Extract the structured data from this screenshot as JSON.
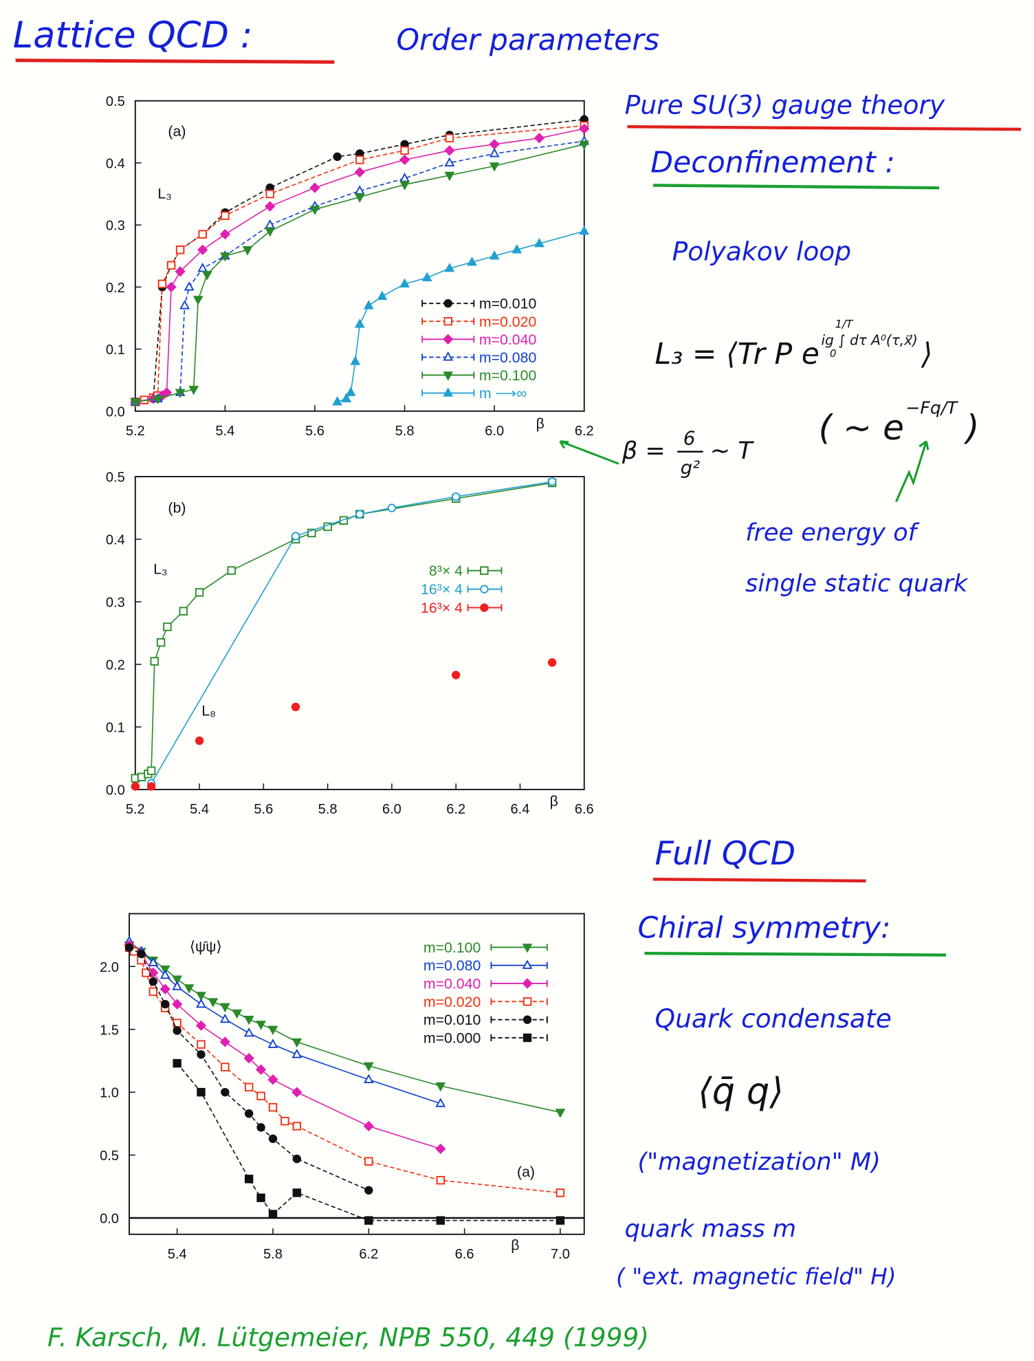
{
  "title": "Lattice QCD :",
  "subtitle": "Order parameters",
  "pure_gauge": {
    "heading": "Pure SU(3) gauge theory",
    "topic": "Deconfinement :",
    "observable": "Polyakov loop",
    "formula": {
      "lhs": "L₃ = ⟨Tr P e",
      "exponent": "ig ∫ dτ A⁰(τ,x⃗)",
      "upper": "1/T",
      "lower": "0",
      "close": "⟩"
    },
    "approx": {
      "open": "( ∼ e",
      "exponent": "−Fq/T",
      "close": ")"
    },
    "beta": {
      "lhs": "β =",
      "numerator": "6",
      "denominator": "g²",
      "rhs": "∼ T"
    },
    "note_line1": "free energy of",
    "note_line2": "single static quark"
  },
  "full_qcd": {
    "heading": "Full QCD",
    "topic": "Chiral symmetry:",
    "observable": "Quark condensate",
    "symbol": "⟨q̄ q⟩",
    "analogy1": "(\"magnetization\" M)",
    "parameter": "quark mass m",
    "analogy2": "( \"ext. magnetic field\" H)"
  },
  "citation": "F. Karsch, M. Lütgemeier, NPB 550, 449 (1999)",
  "chart_data": [
    {
      "type": "line",
      "xlabel": "β",
      "annotations": [
        "(a)",
        "L₃"
      ],
      "xlim": [
        5.2,
        6.2
      ],
      "ylim": [
        0,
        0.5
      ],
      "xticks": [
        5.2,
        5.4,
        5.6,
        5.8,
        {
          "value": 6,
          "label": "6.0"
        },
        6.2
      ],
      "yticks": [
        {
          "value": 0,
          "label": "0.0"
        },
        0.1,
        0.2,
        0.3,
        0.4,
        0.5
      ],
      "series": [
        {
          "name": "m=0.010",
          "color": "#111111",
          "marker": "circle",
          "linestyle": "dashed",
          "x": [
            5.2,
            5.22,
            5.24,
            5.26,
            5.28,
            5.3,
            5.35,
            5.4,
            5.5,
            5.65,
            5.7,
            5.8,
            5.9,
            6.2
          ],
          "values": [
            0.015,
            0.018,
            0.02,
            0.2,
            0.235,
            0.26,
            0.285,
            0.32,
            0.36,
            0.41,
            0.415,
            0.43,
            0.445,
            0.47
          ]
        },
        {
          "name": "m=0.020",
          "color": "#f03010",
          "marker": "square-open",
          "linestyle": "dashed",
          "x": [
            5.2,
            5.22,
            5.24,
            5.25,
            5.26,
            5.28,
            5.3,
            5.35,
            5.4,
            5.5,
            5.7,
            5.8,
            5.9,
            6.2
          ],
          "values": [
            0.015,
            0.018,
            0.022,
            0.025,
            0.205,
            0.235,
            0.26,
            0.285,
            0.315,
            0.35,
            0.405,
            0.42,
            0.44,
            0.46
          ]
        },
        {
          "name": "m=0.040",
          "color": "#e020b0",
          "marker": "diamond",
          "linestyle": "solid",
          "x": [
            5.2,
            5.24,
            5.26,
            5.27,
            5.28,
            5.3,
            5.35,
            5.4,
            5.5,
            5.6,
            5.7,
            5.8,
            5.9,
            6.0,
            6.1,
            6.2
          ],
          "values": [
            0.015,
            0.02,
            0.025,
            0.03,
            0.2,
            0.225,
            0.26,
            0.285,
            0.33,
            0.36,
            0.385,
            0.405,
            0.42,
            0.43,
            0.44,
            0.455
          ]
        },
        {
          "name": "m=0.080",
          "color": "#1040d0",
          "marker": "triangle-open",
          "linestyle": "dashed",
          "x": [
            5.2,
            5.25,
            5.3,
            5.31,
            5.32,
            5.35,
            5.4,
            5.5,
            5.6,
            5.7,
            5.8,
            5.9,
            6.0,
            6.2
          ],
          "values": [
            0.015,
            0.02,
            0.03,
            0.17,
            0.2,
            0.23,
            0.25,
            0.3,
            0.33,
            0.355,
            0.375,
            0.4,
            0.415,
            0.435
          ]
        },
        {
          "name": "m=0.100",
          "color": "#2a8a2a",
          "marker": "triangle-down",
          "linestyle": "solid",
          "x": [
            5.2,
            5.25,
            5.3,
            5.33,
            5.34,
            5.36,
            5.4,
            5.45,
            5.5,
            5.6,
            5.7,
            5.8,
            5.9,
            6.0,
            6.2
          ],
          "values": [
            0.015,
            0.02,
            0.03,
            0.035,
            0.18,
            0.22,
            0.25,
            0.26,
            0.29,
            0.325,
            0.345,
            0.365,
            0.38,
            0.395,
            0.43
          ]
        },
        {
          "name": "m ⟶∞",
          "color": "#20a0d0",
          "marker": "triangle",
          "linestyle": "solid",
          "x": [
            5.65,
            5.67,
            5.68,
            5.69,
            5.7,
            5.72,
            5.75,
            5.8,
            5.85,
            5.9,
            5.95,
            6.0,
            6.05,
            6.1,
            6.2
          ],
          "values": [
            0.015,
            0.02,
            0.03,
            0.08,
            0.14,
            0.17,
            0.185,
            0.205,
            0.215,
            0.23,
            0.24,
            0.25,
            0.26,
            0.27,
            0.29
          ]
        }
      ]
    },
    {
      "type": "line",
      "xlabel": "β",
      "annotations": [
        "(b)",
        "L₃",
        "L₈"
      ],
      "xlim": [
        5.2,
        6.6
      ],
      "ylim": [
        0,
        0.5
      ],
      "xticks": [
        5.2,
        5.4,
        5.6,
        5.8,
        {
          "value": 6,
          "label": "6.0"
        },
        6.2,
        6.4,
        6.6
      ],
      "yticks": [
        {
          "value": 0,
          "label": "0.0"
        },
        0.1,
        0.2,
        0.3,
        0.4,
        0.5
      ],
      "series": [
        {
          "name": "8³× 4",
          "color": "#2a8a2a",
          "marker": "square-open",
          "linestyle": "solid",
          "x": [
            5.2,
            5.22,
            5.24,
            5.25,
            5.26,
            5.28,
            5.3,
            5.35,
            5.4,
            5.5,
            5.7,
            5.75,
            5.8,
            5.85,
            5.9,
            6.2,
            6.5
          ],
          "values": [
            0.018,
            0.02,
            0.025,
            0.03,
            0.205,
            0.235,
            0.26,
            0.285,
            0.315,
            0.35,
            0.4,
            0.41,
            0.42,
            0.43,
            0.44,
            0.465,
            0.49
          ]
        },
        {
          "name": "16³× 4",
          "color": "#20a0d0",
          "marker": "circle-open",
          "linestyle": "solid",
          "x": [
            5.25,
            5.7,
            5.9,
            6.0,
            6.2,
            6.5
          ],
          "values": [
            0.01,
            0.405,
            0.44,
            0.45,
            0.468,
            0.492
          ]
        },
        {
          "name": "16³× 4",
          "color": "#f02020",
          "marker": "circle",
          "linestyle": "none",
          "x": [
            5.2,
            5.25,
            5.4,
            5.7,
            6.2,
            6.5
          ],
          "values": [
            0.005,
            0.005,
            0.078,
            0.132,
            0.183,
            0.203
          ]
        }
      ]
    },
    {
      "type": "line",
      "xlabel": "β",
      "annotations": [
        "⟨ψ̄ψ⟩",
        "(a)"
      ],
      "xlim": [
        5.2,
        7.1
      ],
      "ylim": [
        -0.13,
        2.42
      ],
      "xticks": [
        5.4,
        5.8,
        6.2,
        6.6,
        {
          "value": 7,
          "label": "7.0"
        }
      ],
      "yticks": [
        {
          "value": 0,
          "label": "0.0"
        },
        0.5,
        {
          "value": 1,
          "label": "1.0"
        },
        1.5,
        {
          "value": 2,
          "label": "2.0"
        }
      ],
      "series": [
        {
          "name": "m=0.100",
          "color": "#2a8a2a",
          "marker": "triangle-down",
          "linestyle": "solid",
          "x": [
            5.2,
            5.25,
            5.3,
            5.35,
            5.4,
            5.45,
            5.5,
            5.55,
            5.6,
            5.65,
            5.7,
            5.75,
            5.8,
            5.9,
            6.2,
            6.5,
            7.0
          ],
          "values": [
            2.17,
            2.12,
            2.05,
            1.98,
            1.9,
            1.83,
            1.77,
            1.72,
            1.68,
            1.63,
            1.58,
            1.54,
            1.5,
            1.4,
            1.21,
            1.05,
            0.84
          ]
        },
        {
          "name": "m=0.080",
          "color": "#1040d0",
          "marker": "triangle-open",
          "linestyle": "solid",
          "x": [
            5.2,
            5.25,
            5.3,
            5.35,
            5.4,
            5.5,
            5.6,
            5.7,
            5.8,
            5.9,
            6.2,
            6.5
          ],
          "values": [
            2.2,
            2.12,
            2.03,
            1.93,
            1.84,
            1.7,
            1.58,
            1.47,
            1.38,
            1.3,
            1.1,
            0.91
          ]
        },
        {
          "name": "m=0.040",
          "color": "#e020b0",
          "marker": "diamond",
          "linestyle": "solid",
          "x": [
            5.2,
            5.25,
            5.3,
            5.35,
            5.4,
            5.5,
            5.6,
            5.7,
            5.75,
            5.8,
            5.9,
            6.2,
            6.5
          ],
          "values": [
            2.17,
            2.1,
            1.95,
            1.82,
            1.7,
            1.53,
            1.4,
            1.27,
            1.18,
            1.1,
            1.0,
            0.73,
            0.55
          ]
        },
        {
          "name": "m=0.020",
          "color": "#f03010",
          "marker": "square-open",
          "linestyle": "dashed",
          "x": [
            5.2,
            5.22,
            5.25,
            5.27,
            5.3,
            5.35,
            5.4,
            5.5,
            5.6,
            5.7,
            5.75,
            5.8,
            5.85,
            5.9,
            6.2,
            6.5,
            7.0
          ],
          "values": [
            2.15,
            2.12,
            2.05,
            1.95,
            1.8,
            1.67,
            1.55,
            1.38,
            1.2,
            1.04,
            0.97,
            0.88,
            0.77,
            0.73,
            0.45,
            0.3,
            0.2
          ]
        },
        {
          "name": "m=0.010",
          "color": "#111111",
          "marker": "circle",
          "linestyle": "dashed",
          "x": [
            5.2,
            5.25,
            5.3,
            5.35,
            5.4,
            5.5,
            5.6,
            5.7,
            5.75,
            5.8,
            5.9,
            6.2
          ],
          "values": [
            2.15,
            2.1,
            1.88,
            1.7,
            1.49,
            1.3,
            1.0,
            0.83,
            0.72,
            0.63,
            0.47,
            0.22
          ]
        },
        {
          "name": "m=0.000",
          "color": "#111111",
          "marker": "square",
          "linestyle": "dashed",
          "x": [
            5.4,
            5.5,
            5.7,
            5.75,
            5.8,
            5.9,
            6.2,
            6.5,
            7.0
          ],
          "values": [
            1.23,
            1.0,
            0.31,
            0.16,
            0.03,
            0.2,
            -0.02,
            -0.02,
            -0.02
          ]
        }
      ]
    }
  ]
}
